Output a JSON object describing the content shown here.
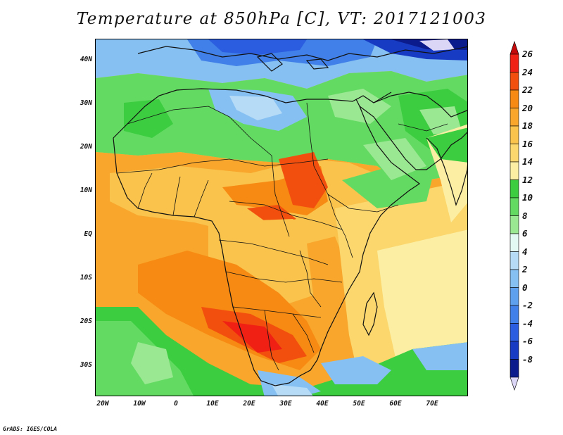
{
  "title": "Temperature at 850hPa [C], VT: 2017121003",
  "credit": "GrADS: IGES/COLA",
  "axes": {
    "lat_labels": [
      "40N",
      "30N",
      "20N",
      "10N",
      "EQ",
      "10S",
      "20S",
      "30S"
    ],
    "lon_labels": [
      "20W",
      "10W",
      "0",
      "10E",
      "20E",
      "30E",
      "40E",
      "50E",
      "60E",
      "70E"
    ]
  },
  "colorbar": {
    "labels": [
      "26",
      "24",
      "22",
      "20",
      "18",
      "16",
      "14",
      "12",
      "10",
      "8",
      "6",
      "4",
      "2",
      "0",
      "-2",
      "-4",
      "-6",
      "-8"
    ],
    "colors": [
      "#f02014",
      "#f24f0e",
      "#f78a12",
      "#f8a72c",
      "#f9c34c",
      "#fbd76e",
      "#fcefa3",
      "#3ccd40",
      "#63db62",
      "#9ae892",
      "#e2f8f2",
      "#b6dbf6",
      "#86c0f2",
      "#5fa0ee",
      "#4180e8",
      "#2a5de0",
      "#173bc2",
      "#0c1b8c"
    ],
    "over_color": "#c40a0a",
    "under_color": "#dcd6f6"
  },
  "map": {
    "lon_range": [
      -22,
      80
    ],
    "lat_range": [
      -36,
      45
    ],
    "ocean_color": "#f4c260",
    "coast_color": "#111111"
  }
}
